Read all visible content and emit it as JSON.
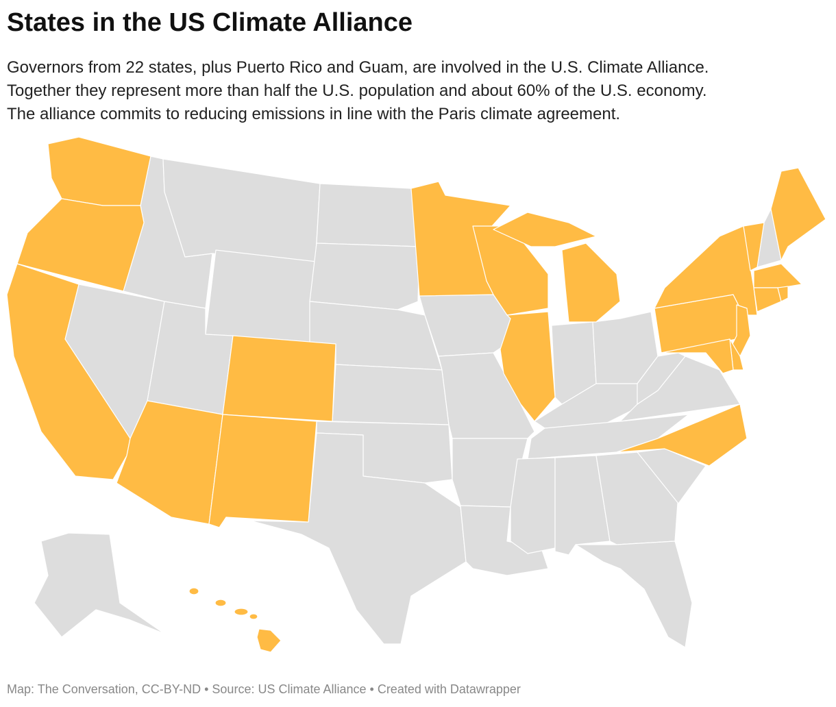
{
  "title": "States in the US Climate Alliance",
  "description": [
    "Governors from 22 states, plus Puerto Rico and Guam, are involved in the U.S. Climate Alliance.",
    "Together they represent more than half the U.S. population and about 60% of the U.S. economy.",
    "The alliance commits to reducing emissions in line with the Paris climate agreement."
  ],
  "footer": "Map: The Conversation, CC-BY-ND • Source: US Climate Alliance • Created with Datawrapper",
  "member_color": "#ffbb44",
  "other_color": "#dddddd"
}
